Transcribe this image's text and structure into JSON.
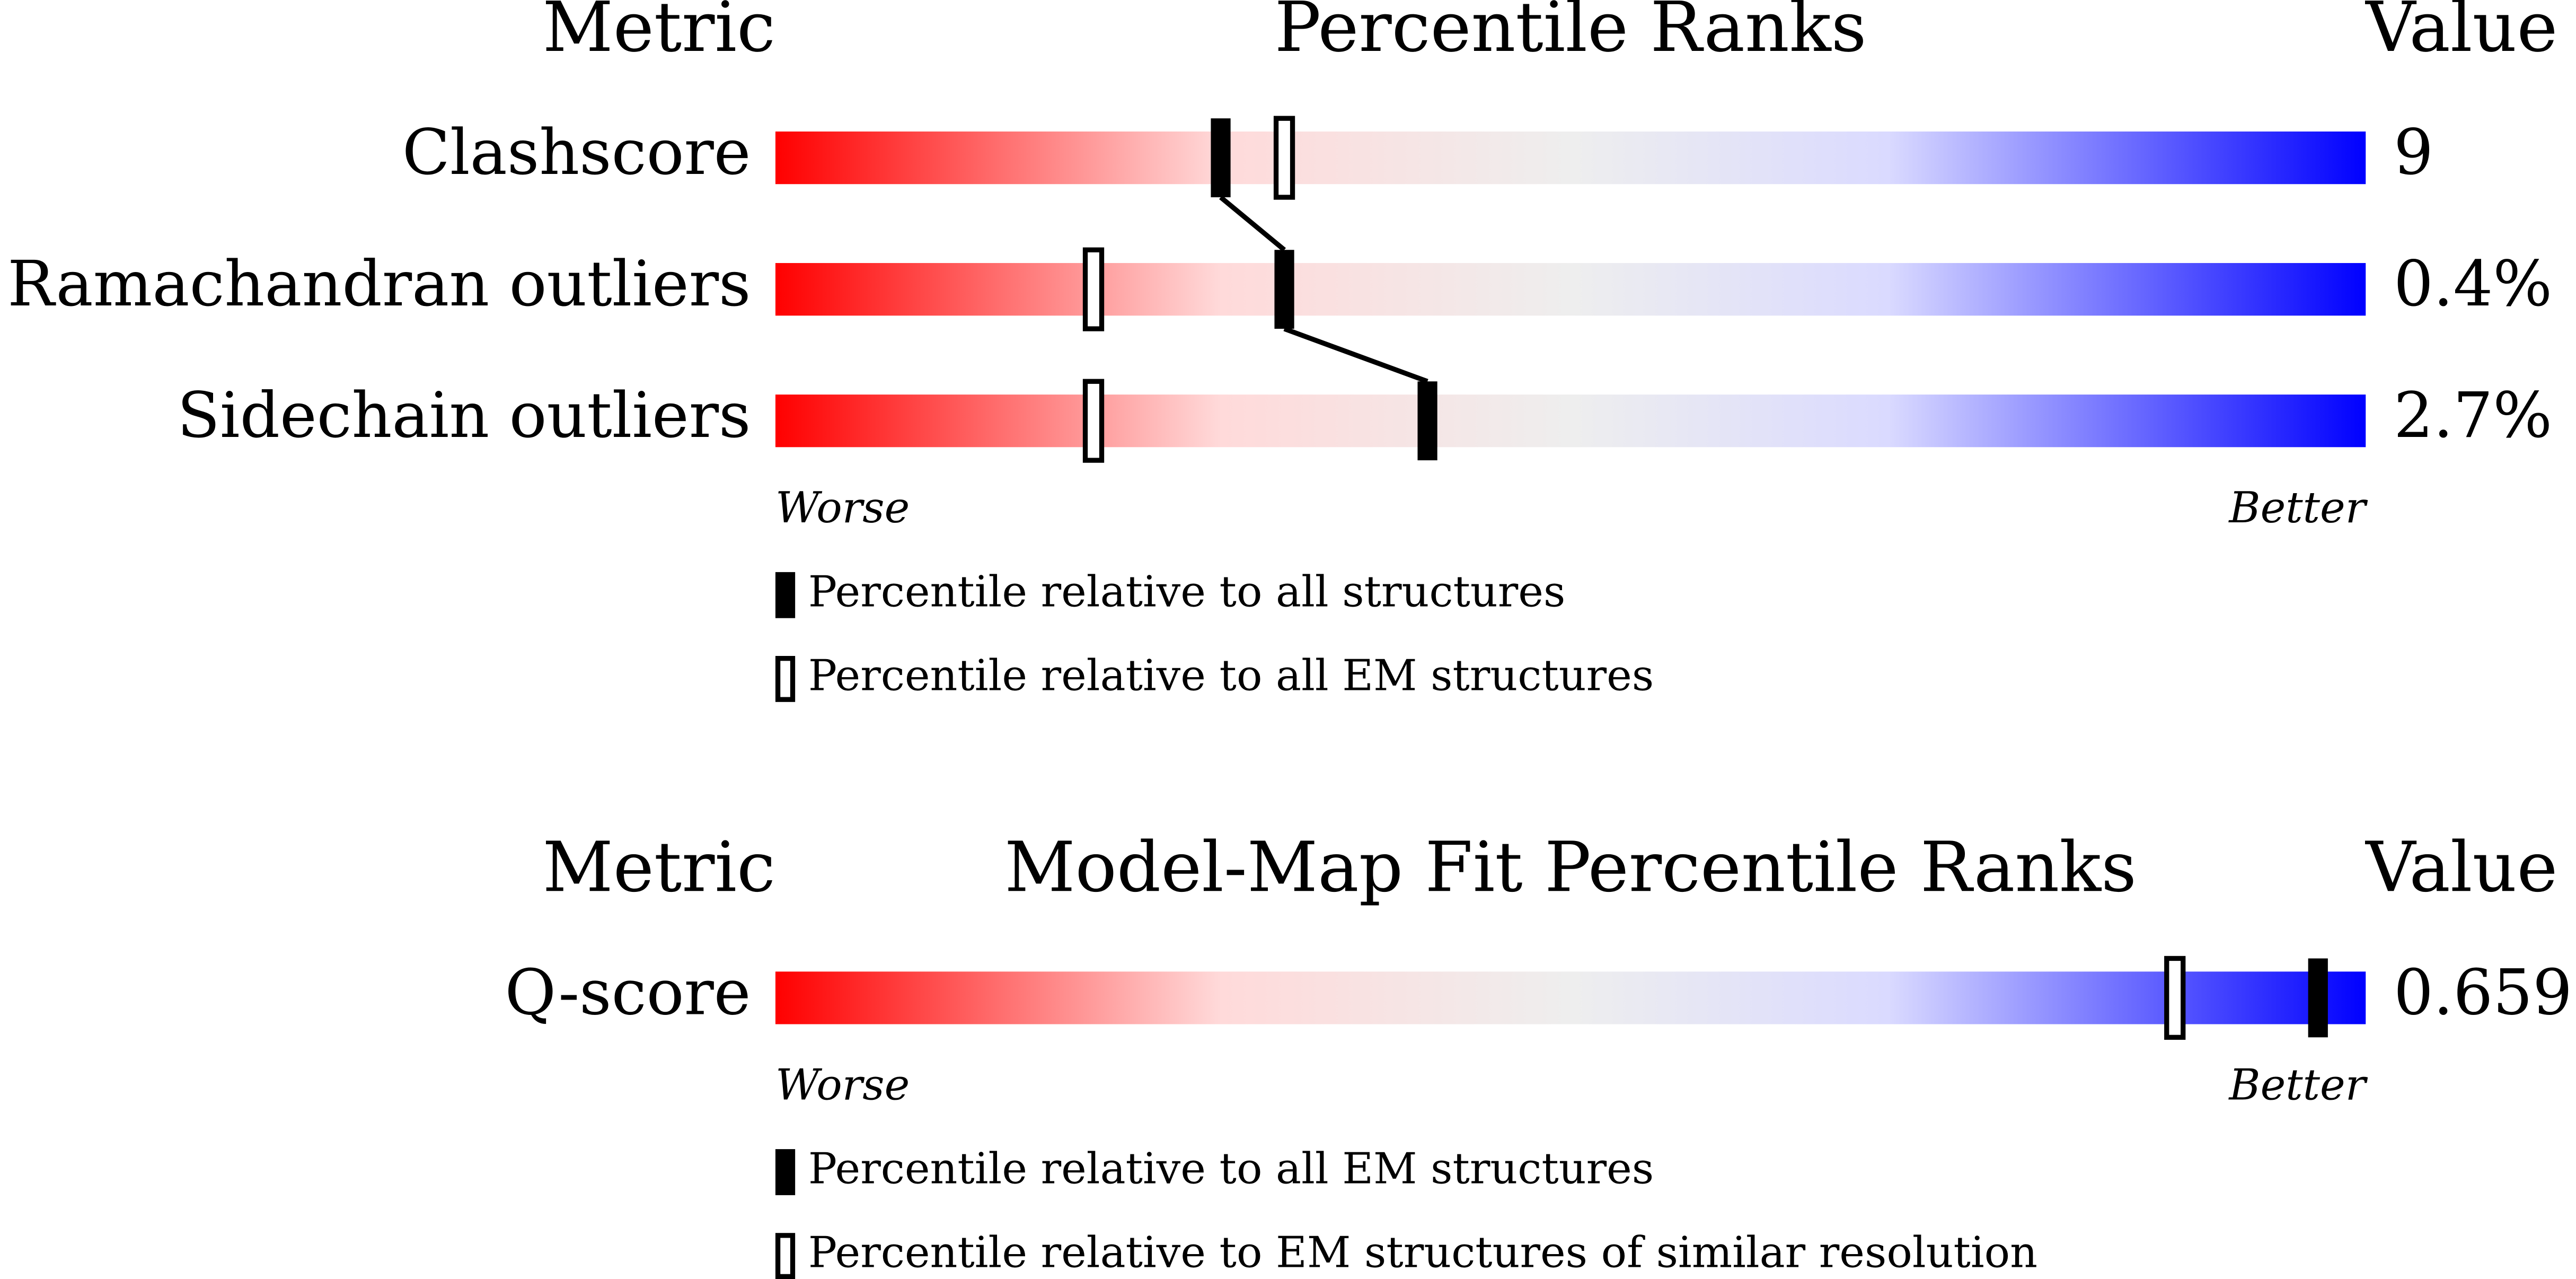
{
  "chart_data": [
    {
      "type": "percentile-slider",
      "headers": {
        "metric": "Metric",
        "title": "Percentile Ranks",
        "value": "Value"
      },
      "xlim": [
        0,
        100
      ],
      "axis_labels": {
        "left": "Worse",
        "right": "Better"
      },
      "rows": [
        {
          "metric": "Clashscore",
          "value": "9",
          "filled": 28,
          "open": 32
        },
        {
          "metric": "Ramachandran outliers",
          "value": "0.4%",
          "filled": 32,
          "open": 20
        },
        {
          "metric": "Sidechain outliers",
          "value": "2.7%",
          "filled": 41,
          "open": 20
        }
      ],
      "legend": [
        {
          "style": "filled",
          "label": "Percentile relative to all structures"
        },
        {
          "style": "open",
          "label": "Percentile relative to all EM structures"
        }
      ]
    },
    {
      "type": "percentile-slider",
      "headers": {
        "metric": "Metric",
        "title": "Model-Map Fit Percentile Ranks",
        "value": "Value"
      },
      "xlim": [
        0,
        100
      ],
      "axis_labels": {
        "left": "Worse",
        "right": "Better"
      },
      "rows": [
        {
          "metric": "Q-score",
          "value": "0.659",
          "filled": 97,
          "open": 88
        }
      ],
      "legend": [
        {
          "style": "filled",
          "label": "Percentile relative to all EM structures"
        },
        {
          "style": "open",
          "label": "Percentile relative to EM structures of similar resolution"
        }
      ]
    }
  ]
}
